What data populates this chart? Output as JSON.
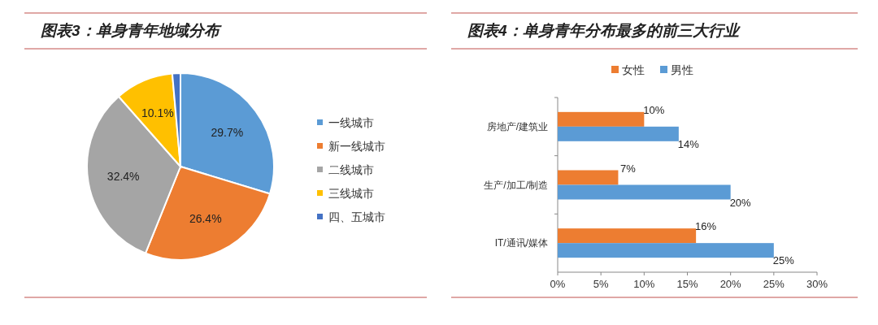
{
  "chart_data": [
    {
      "type": "pie",
      "title": "图表3：单身青年地域分布",
      "categories": [
        "一线城市",
        "新一线城市",
        "二线城市",
        "三线城市",
        "四、五城市"
      ],
      "values": [
        29.7,
        26.4,
        32.4,
        10.1,
        1.4
      ],
      "value_labels": [
        "29.7%",
        "26.4%",
        "32.4%",
        "10.1%",
        null
      ],
      "colors": [
        "#5b9bd5",
        "#ed7d31",
        "#a5a5a5",
        "#ffc000",
        "#4472c4"
      ],
      "legend": "right"
    },
    {
      "type": "bar",
      "orientation": "horizontal",
      "title": "图表4：单身青年分布最多的前三大行业",
      "categories": [
        "房地产/建筑业",
        "生产/加工/制造",
        "IT/通讯/媒体"
      ],
      "series": [
        {
          "name": "女性",
          "color": "#ed7d31",
          "values": [
            10,
            7,
            16
          ],
          "value_labels": [
            "10%",
            "7%",
            "16%"
          ]
        },
        {
          "name": "男性",
          "color": "#5b9bd5",
          "values": [
            14,
            20,
            25
          ],
          "value_labels": [
            "14%",
            "20%",
            "25%"
          ]
        }
      ],
      "xlim": [
        0,
        30
      ],
      "xticks": [
        {
          "value": 0,
          "label": "0%"
        },
        {
          "value": 5,
          "label": "5%"
        },
        {
          "value": 10,
          "label": "10%"
        },
        {
          "value": 15,
          "label": "15%"
        },
        {
          "value": 20,
          "label": "20%"
        },
        {
          "value": 25,
          "label": "25%"
        },
        {
          "value": 30,
          "label": "30%"
        }
      ],
      "legend": "top",
      "grid": false
    }
  ]
}
